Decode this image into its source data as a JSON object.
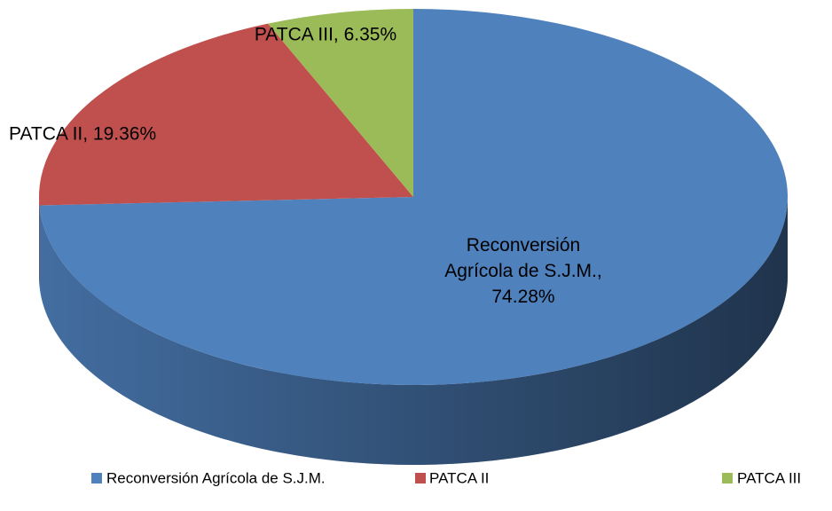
{
  "chart_data": {
    "type": "pie",
    "categories": [
      "Reconversión Agrícola de S.J.M.",
      "PATCA II",
      "PATCA III"
    ],
    "values": [
      74.28,
      19.36,
      6.35
    ],
    "value_labels": [
      "Reconversión Agrícola de S.J.M., 74.28%",
      "PATCA II, 19.36%",
      "PATCA III, 6.35%"
    ],
    "colors": [
      "#4f81bd",
      "#c0504d",
      "#9bbb59"
    ],
    "legend": "bottom"
  }
}
